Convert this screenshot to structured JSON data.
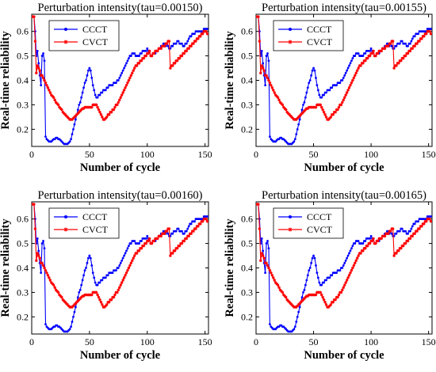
{
  "chart_data": [
    {
      "type": "line",
      "title": "Perturbation intensity(tau=0.00150)",
      "xlabel": "Number of cycle",
      "ylabel": "Real-time reliability",
      "xlim": [
        0,
        153
      ],
      "ylim": [
        0.13,
        0.67
      ],
      "xticks": [
        0,
        50,
        100,
        150
      ],
      "yticks": [
        0.2,
        0.3,
        0.4,
        0.5,
        0.6
      ],
      "legend": "top-left",
      "series": [
        {
          "name": "CCCT",
          "color": "#0000ff",
          "marker": "circle",
          "x": [
            0,
            1,
            2,
            3,
            4,
            5,
            6,
            7,
            8,
            9,
            10,
            11,
            12,
            13,
            14,
            15,
            16,
            17,
            18,
            19,
            20,
            21,
            22,
            23,
            24,
            25,
            26,
            27,
            28,
            29,
            30,
            31,
            32,
            33,
            34,
            35,
            36,
            37,
            38,
            39,
            40,
            41,
            42,
            43,
            44,
            45,
            46,
            47,
            48,
            49,
            50,
            51,
            52,
            53,
            54,
            55,
            56,
            57,
            58,
            59,
            60,
            61,
            62,
            63,
            64,
            65,
            66,
            67,
            68,
            69,
            70,
            71,
            72,
            73,
            74,
            75,
            76,
            77,
            78,
            79,
            80,
            81,
            82,
            83,
            84,
            85,
            86,
            87,
            88,
            89,
            90,
            91,
            92,
            93,
            94,
            95,
            96,
            97,
            98,
            99,
            100,
            101,
            102,
            103,
            104,
            105,
            106,
            107,
            108,
            109,
            110,
            111,
            112,
            113,
            114,
            115,
            116,
            117,
            118,
            119,
            120,
            121,
            122,
            123,
            124,
            125,
            126,
            127,
            128,
            129,
            130,
            131,
            132,
            133,
            134,
            135,
            136,
            137,
            138,
            139,
            140,
            141,
            142,
            143,
            144,
            145,
            146,
            147,
            148,
            149,
            150,
            151,
            152
          ],
          "values": [
            0.66,
            0.66,
            0.66,
            0.6,
            0.5,
            0.52,
            0.47,
            0.42,
            0.38,
            0.5,
            0.51,
            0.48,
            0.17,
            0.16,
            0.155,
            0.15,
            0.15,
            0.15,
            0.155,
            0.16,
            0.16,
            0.165,
            0.165,
            0.16,
            0.16,
            0.155,
            0.15,
            0.145,
            0.14,
            0.14,
            0.14,
            0.14,
            0.145,
            0.15,
            0.16,
            0.18,
            0.2,
            0.22,
            0.24,
            0.26,
            0.28,
            0.3,
            0.31,
            0.33,
            0.35,
            0.37,
            0.39,
            0.4,
            0.42,
            0.44,
            0.45,
            0.44,
            0.41,
            0.38,
            0.36,
            0.34,
            0.33,
            0.33,
            0.34,
            0.34,
            0.35,
            0.35,
            0.36,
            0.36,
            0.36,
            0.37,
            0.37,
            0.38,
            0.38,
            0.38,
            0.38,
            0.39,
            0.39,
            0.39,
            0.4,
            0.4,
            0.41,
            0.42,
            0.43,
            0.44,
            0.45,
            0.46,
            0.47,
            0.48,
            0.49,
            0.5,
            0.5,
            0.51,
            0.51,
            0.51,
            0.5,
            0.5,
            0.5,
            0.5,
            0.51,
            0.51,
            0.52,
            0.52,
            0.52,
            0.52,
            0.53,
            0.52,
            0.52,
            0.5,
            0.5,
            0.51,
            0.51,
            0.51,
            0.52,
            0.52,
            0.53,
            0.53,
            0.54,
            0.54,
            0.55,
            0.55,
            0.54,
            0.55,
            0.54,
            0.53,
            0.53,
            0.54,
            0.54,
            0.55,
            0.55,
            0.55,
            0.56,
            0.56,
            0.55,
            0.55,
            0.55,
            0.54,
            0.54,
            0.55,
            0.55,
            0.56,
            0.57,
            0.58,
            0.58,
            0.59,
            0.59,
            0.59,
            0.6,
            0.6,
            0.6,
            0.6,
            0.6,
            0.6,
            0.6,
            0.61,
            0.61,
            0.61,
            0.61
          ]
        },
        {
          "name": "CVCT",
          "color": "#ff0000",
          "marker": "asterisk",
          "x": [
            0,
            1,
            2,
            3,
            4,
            5,
            6,
            7,
            8,
            9,
            10,
            11,
            12,
            13,
            14,
            15,
            16,
            17,
            18,
            19,
            20,
            21,
            22,
            23,
            24,
            25,
            26,
            27,
            28,
            29,
            30,
            31,
            32,
            33,
            34,
            35,
            36,
            37,
            38,
            39,
            40,
            41,
            42,
            43,
            44,
            45,
            46,
            47,
            48,
            49,
            50,
            51,
            52,
            53,
            54,
            55,
            56,
            57,
            58,
            59,
            60,
            61,
            62,
            63,
            64,
            65,
            66,
            67,
            68,
            69,
            70,
            71,
            72,
            73,
            74,
            75,
            76,
            77,
            78,
            79,
            80,
            81,
            82,
            83,
            84,
            85,
            86,
            87,
            88,
            89,
            90,
            91,
            92,
            93,
            94,
            95,
            96,
            97,
            98,
            99,
            100,
            101,
            102,
            103,
            104,
            105,
            106,
            107,
            108,
            109,
            110,
            111,
            112,
            113,
            114,
            115,
            116,
            117,
            118,
            119,
            120,
            121,
            122,
            123,
            124,
            125,
            126,
            127,
            128,
            129,
            130,
            131,
            132,
            133,
            134,
            135,
            136,
            137,
            138,
            139,
            140,
            141,
            142,
            143,
            144,
            145,
            146,
            147,
            148,
            149,
            150,
            151,
            152
          ],
          "values": [
            0.66,
            0.66,
            0.66,
            0.56,
            0.43,
            0.46,
            0.45,
            0.44,
            0.42,
            0.42,
            0.41,
            0.4,
            0.39,
            0.38,
            0.37,
            0.36,
            0.35,
            0.34,
            0.335,
            0.33,
            0.32,
            0.31,
            0.305,
            0.3,
            0.29,
            0.285,
            0.28,
            0.27,
            0.265,
            0.26,
            0.255,
            0.25,
            0.245,
            0.24,
            0.24,
            0.24,
            0.245,
            0.25,
            0.255,
            0.26,
            0.265,
            0.27,
            0.275,
            0.28,
            0.285,
            0.285,
            0.29,
            0.29,
            0.29,
            0.29,
            0.29,
            0.29,
            0.29,
            0.3,
            0.3,
            0.3,
            0.3,
            0.29,
            0.28,
            0.27,
            0.26,
            0.25,
            0.24,
            0.24,
            0.245,
            0.25,
            0.26,
            0.26,
            0.27,
            0.27,
            0.28,
            0.28,
            0.29,
            0.3,
            0.3,
            0.31,
            0.32,
            0.33,
            0.34,
            0.35,
            0.36,
            0.37,
            0.38,
            0.39,
            0.4,
            0.41,
            0.42,
            0.43,
            0.44,
            0.45,
            0.46,
            0.46,
            0.47,
            0.47,
            0.48,
            0.48,
            0.49,
            0.49,
            0.5,
            0.5,
            0.51,
            0.51,
            0.52,
            0.5,
            0.5,
            0.51,
            0.51,
            0.52,
            0.52,
            0.52,
            0.53,
            0.53,
            0.53,
            0.54,
            0.54,
            0.54,
            0.55,
            0.55,
            0.56,
            0.56,
            0.45,
            0.46,
            0.46,
            0.47,
            0.47,
            0.48,
            0.48,
            0.49,
            0.49,
            0.5,
            0.5,
            0.51,
            0.51,
            0.52,
            0.52,
            0.53,
            0.53,
            0.54,
            0.54,
            0.55,
            0.55,
            0.56,
            0.56,
            0.57,
            0.57,
            0.58,
            0.58,
            0.59,
            0.59,
            0.6,
            0.6,
            0.6,
            0.59
          ]
        }
      ]
    },
    {
      "type": "line",
      "title": "Perturbation intensity(tau=0.00155)",
      "xlabel": "Number of cycle",
      "ylabel": "Real-time reliability",
      "xlim": [
        0,
        153
      ],
      "ylim": [
        0.13,
        0.67
      ],
      "xticks": [
        0,
        50,
        100,
        150
      ],
      "yticks": [
        0.2,
        0.3,
        0.4,
        0.5,
        0.6
      ],
      "legend": "top-left",
      "series_ref": 0
    },
    {
      "type": "line",
      "title": "Perturbation intensity(tau=0.00160)",
      "xlabel": "Number of cycle",
      "ylabel": "Real-time reliability",
      "xlim": [
        0,
        153
      ],
      "ylim": [
        0.13,
        0.67
      ],
      "xticks": [
        0,
        50,
        100,
        150
      ],
      "yticks": [
        0.2,
        0.3,
        0.4,
        0.5,
        0.6
      ],
      "legend": "top-left",
      "series_ref": 0
    },
    {
      "type": "line",
      "title": "Perturbation intensity(tau=0.00165)",
      "xlabel": "Number of cycle",
      "ylabel": "Real-time reliability",
      "xlim": [
        0,
        153
      ],
      "ylim": [
        0.13,
        0.67
      ],
      "xticks": [
        0,
        50,
        100,
        150
      ],
      "yticks": [
        0.2,
        0.3,
        0.4,
        0.5,
        0.6
      ],
      "legend": "top-left",
      "series_ref": 0
    }
  ]
}
